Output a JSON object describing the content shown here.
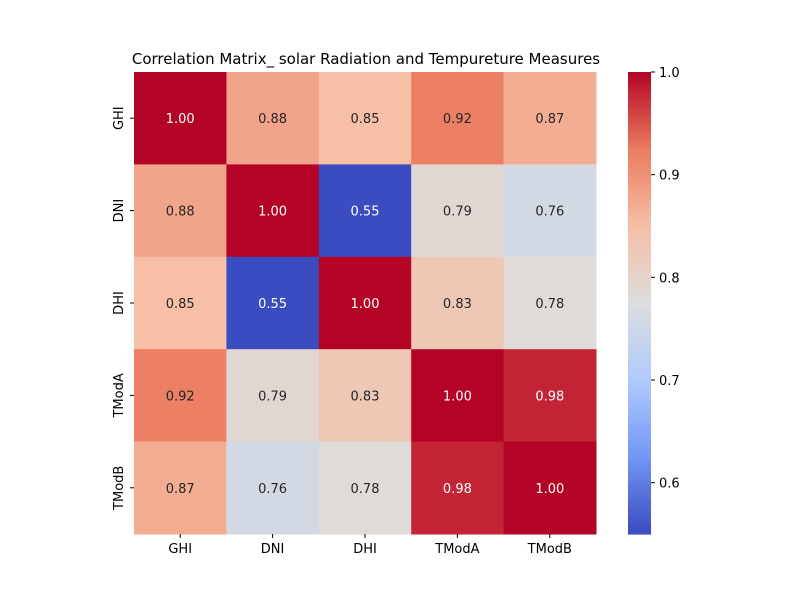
{
  "chart_data": {
    "type": "heatmap",
    "title": "Correlation Matrix_ solar Radiation and Tempureture Measures",
    "xlabel": "",
    "ylabel": "",
    "x_categories": [
      "GHI",
      "DNI",
      "DHI",
      "TModA",
      "TModB"
    ],
    "y_categories": [
      "GHI",
      "DNI",
      "DHI",
      "TModA",
      "TModB"
    ],
    "values": [
      [
        1.0,
        0.88,
        0.85,
        0.92,
        0.87
      ],
      [
        0.88,
        1.0,
        0.55,
        0.79,
        0.76
      ],
      [
        0.85,
        0.55,
        1.0,
        0.83,
        0.78
      ],
      [
        0.92,
        0.79,
        0.83,
        1.0,
        0.98
      ],
      [
        0.87,
        0.76,
        0.78,
        0.98,
        1.0
      ]
    ],
    "annotation_labels": [
      [
        "1.00",
        "0.88",
        "0.85",
        "0.92",
        "0.87"
      ],
      [
        "0.88",
        "1.00",
        "0.55",
        "0.79",
        "0.76"
      ],
      [
        "0.85",
        "0.55",
        "1.00",
        "0.83",
        "0.78"
      ],
      [
        "0.92",
        "0.79",
        "0.83",
        "1.00",
        "0.98"
      ],
      [
        "0.87",
        "0.76",
        "0.78",
        "0.98",
        "1.00"
      ]
    ],
    "colormap": "coolwarm",
    "colormap_stops": [
      "#3b4cc0",
      "#7396f5",
      "#b0cbfc",
      "#dcdddd",
      "#f6bfa6",
      "#ea7b60",
      "#b40426"
    ],
    "vmin": 0.55,
    "vmax": 1.0,
    "colorbar_ticks": [
      "0.6",
      "0.7",
      "0.8",
      "0.9",
      "1.0"
    ],
    "colorbar_tick_values": [
      0.6,
      0.7,
      0.8,
      0.9,
      1.0
    ],
    "annotation_light_color": "#ffffff",
    "annotation_dark_color": "#262626"
  }
}
